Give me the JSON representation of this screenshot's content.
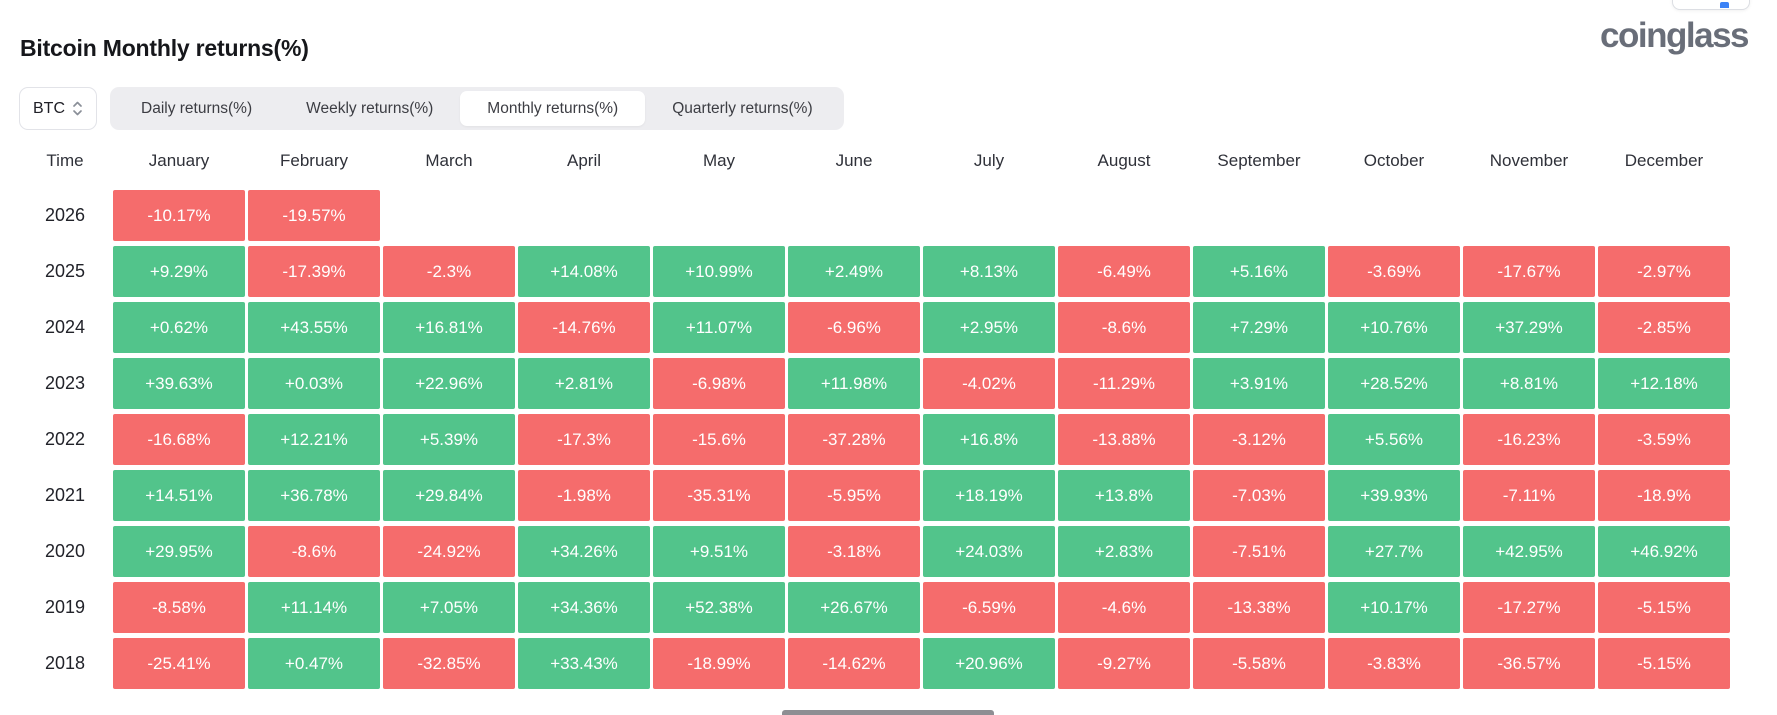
{
  "header": {
    "title": "Bitcoin Monthly returns(%)",
    "brand": "coinglass"
  },
  "controls": {
    "coin": "BTC",
    "tabs": [
      "Daily returns(%)",
      "Weekly returns(%)",
      "Monthly returns(%)",
      "Quarterly returns(%)"
    ],
    "active_tab": "Monthly returns(%)"
  },
  "chart_data": {
    "type": "heatmap",
    "title": "Bitcoin Monthly returns(%)",
    "unit": "%",
    "legend_position": "none",
    "colors": {
      "positive": "#52c48b",
      "negative": "#f56c6c",
      "text": "#ffffff"
    },
    "columns": [
      "Time",
      "January",
      "February",
      "March",
      "April",
      "May",
      "June",
      "July",
      "August",
      "September",
      "October",
      "November",
      "December"
    ],
    "rows": [
      {
        "year": "2026",
        "cells": [
          "-10.17%",
          "-19.57%",
          "",
          "",
          "",
          "",
          "",
          "",
          "",
          "",
          "",
          ""
        ]
      },
      {
        "year": "2025",
        "cells": [
          "+9.29%",
          "-17.39%",
          "-2.3%",
          "+14.08%",
          "+10.99%",
          "+2.49%",
          "+8.13%",
          "-6.49%",
          "+5.16%",
          "-3.69%",
          "-17.67%",
          "-2.97%"
        ]
      },
      {
        "year": "2024",
        "cells": [
          "+0.62%",
          "+43.55%",
          "+16.81%",
          "-14.76%",
          "+11.07%",
          "-6.96%",
          "+2.95%",
          "-8.6%",
          "+7.29%",
          "+10.76%",
          "+37.29%",
          "-2.85%"
        ]
      },
      {
        "year": "2023",
        "cells": [
          "+39.63%",
          "+0.03%",
          "+22.96%",
          "+2.81%",
          "-6.98%",
          "+11.98%",
          "-4.02%",
          "-11.29%",
          "+3.91%",
          "+28.52%",
          "+8.81%",
          "+12.18%"
        ]
      },
      {
        "year": "2022",
        "cells": [
          "-16.68%",
          "+12.21%",
          "+5.39%",
          "-17.3%",
          "-15.6%",
          "-37.28%",
          "+16.8%",
          "-13.88%",
          "-3.12%",
          "+5.56%",
          "-16.23%",
          "-3.59%"
        ]
      },
      {
        "year": "2021",
        "cells": [
          "+14.51%",
          "+36.78%",
          "+29.84%",
          "-1.98%",
          "-35.31%",
          "-5.95%",
          "+18.19%",
          "+13.8%",
          "-7.03%",
          "+39.93%",
          "-7.11%",
          "-18.9%"
        ]
      },
      {
        "year": "2020",
        "cells": [
          "+29.95%",
          "-8.6%",
          "-24.92%",
          "+34.26%",
          "+9.51%",
          "-3.18%",
          "+24.03%",
          "+2.83%",
          "-7.51%",
          "+27.7%",
          "+42.95%",
          "+46.92%"
        ]
      },
      {
        "year": "2019",
        "cells": [
          "-8.58%",
          "+11.14%",
          "+7.05%",
          "+34.36%",
          "+52.38%",
          "+26.67%",
          "-6.59%",
          "-4.6%",
          "-13.38%",
          "+10.17%",
          "-17.27%",
          "-5.15%"
        ]
      },
      {
        "year": "2018",
        "cells": [
          "-25.41%",
          "+0.47%",
          "-32.85%",
          "+33.43%",
          "-18.99%",
          "-14.62%",
          "+20.96%",
          "-9.27%",
          "-5.58%",
          "-3.83%",
          "-36.57%",
          "-5.15%"
        ]
      }
    ]
  }
}
